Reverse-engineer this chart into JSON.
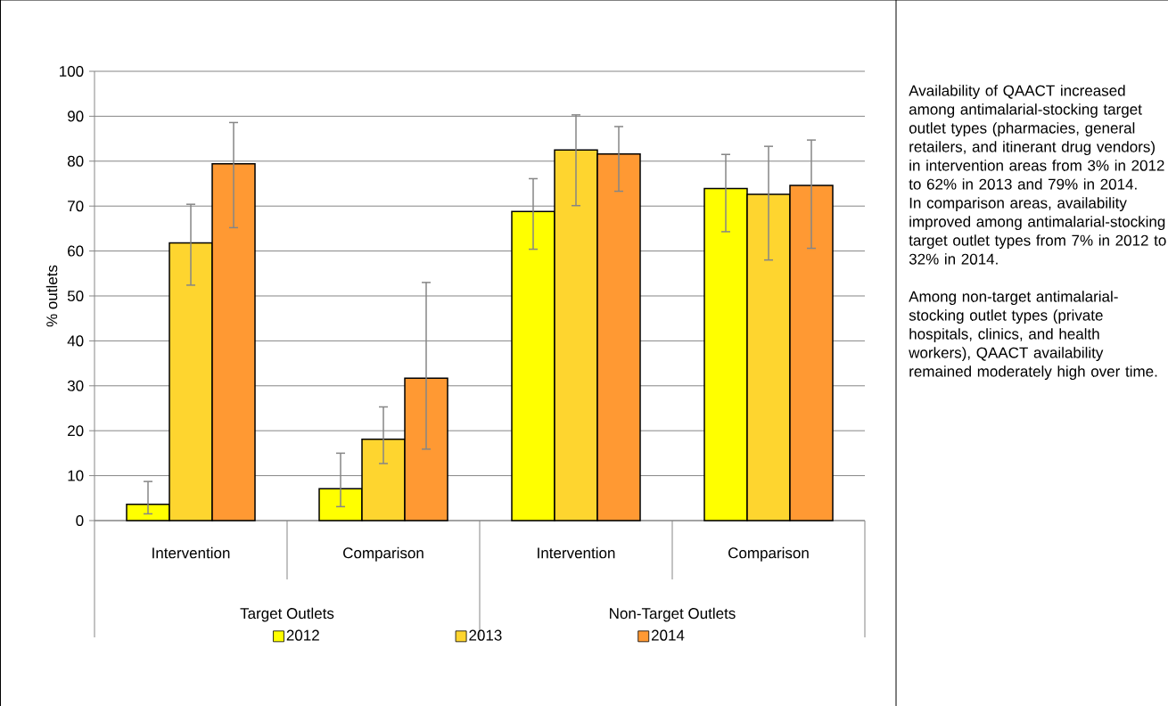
{
  "chart_data": {
    "type": "bar",
    "ylabel": "% outlets",
    "categories": [
      "Intervention",
      "Comparison",
      "Intervention",
      "Comparison"
    ],
    "series": [
      {
        "name": "2012",
        "color": "#ffff00",
        "values": [
          3.6,
          7.1,
          68.8,
          73.9
        ],
        "errors": [
          [
            1.5,
            8.7
          ],
          [
            3.1,
            15.0
          ],
          [
            60.4,
            76.1
          ],
          [
            64.3,
            81.5
          ]
        ]
      },
      {
        "name": "2013",
        "color": "#fed52f",
        "values": [
          61.8,
          18.1,
          82.5,
          72.6
        ],
        "errors": [
          [
            52.4,
            70.4
          ],
          [
            12.7,
            25.3
          ],
          [
            70.1,
            90.3
          ],
          [
            58.0,
            83.3
          ]
        ]
      },
      {
        "name": "2014",
        "color": "#ff9933",
        "values": [
          79.4,
          31.7,
          81.6,
          74.6
        ],
        "errors": [
          [
            65.2,
            88.6
          ],
          [
            15.9,
            53.0
          ],
          [
            73.3,
            87.7
          ],
          [
            60.6,
            84.7
          ]
        ]
      }
    ],
    "ylim": [
      0,
      100
    ],
    "yticks": [
      0,
      10,
      20,
      30,
      40,
      50,
      60,
      70,
      80,
      90,
      100
    ],
    "grid": "y",
    "legend": "bottom",
    "annotations": [
      "Target Outlets",
      "Non-Target Outlets",
      "Availability of QAACT increased among antimalarial-stocking target outlet types (pharmacies, general retailers, and itinerant drug vendors) in intervention areas from 3% in 2012 to 62% in 2013 and 79% in 2014. In comparison areas, availability improved among antimalarial-stocking target outlet types from 7% in 2012 to 32% in 2014.",
      "Among non-target antimalarial-stocking outlet types (private hospitals, clinics, and health workers), QAACT availability remained moderately high over time."
    ]
  }
}
